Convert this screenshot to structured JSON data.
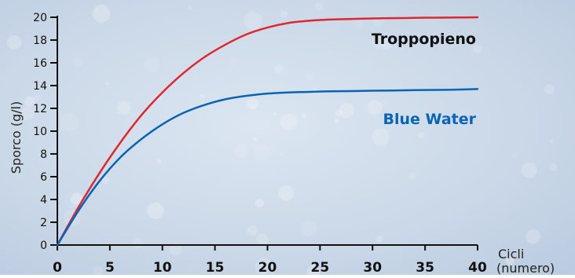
{
  "colors": {
    "background": "#c7d5e6",
    "axis": "#111111",
    "troppopieno": "#e0262e",
    "blue_water": "#0a64b4"
  },
  "chart_data": {
    "type": "line",
    "ylabel": "Sporco (g/l)",
    "xlabel": "Cicli",
    "xlabel_unit": "(numero)",
    "xlim": [
      0,
      40
    ],
    "ylim": [
      0,
      20
    ],
    "xticks": [
      0,
      5,
      10,
      15,
      20,
      25,
      30,
      35,
      40
    ],
    "yticks": [
      0,
      2,
      4,
      6,
      8,
      10,
      12,
      14,
      16,
      18,
      20
    ],
    "grid": false,
    "x": [
      0,
      2,
      4,
      6,
      8,
      10,
      12,
      14,
      16,
      18,
      20,
      22,
      24,
      26,
      28,
      30,
      32,
      34,
      36,
      38,
      40
    ],
    "series": [
      {
        "name": "Troppopieno",
        "color": "#e0262e",
        "values": [
          0,
          3.3,
          6.3,
          9.0,
          11.4,
          13.4,
          15.1,
          16.5,
          17.6,
          18.5,
          19.1,
          19.5,
          19.7,
          19.8,
          19.85,
          19.9,
          19.92,
          19.95,
          19.97,
          19.98,
          20.0
        ]
      },
      {
        "name": "Blue Water",
        "color": "#0a64b4",
        "values": [
          0,
          3.0,
          5.6,
          7.7,
          9.3,
          10.6,
          11.6,
          12.3,
          12.8,
          13.1,
          13.3,
          13.4,
          13.45,
          13.5,
          13.52,
          13.55,
          13.57,
          13.6,
          13.62,
          13.65,
          13.7
        ]
      }
    ]
  }
}
